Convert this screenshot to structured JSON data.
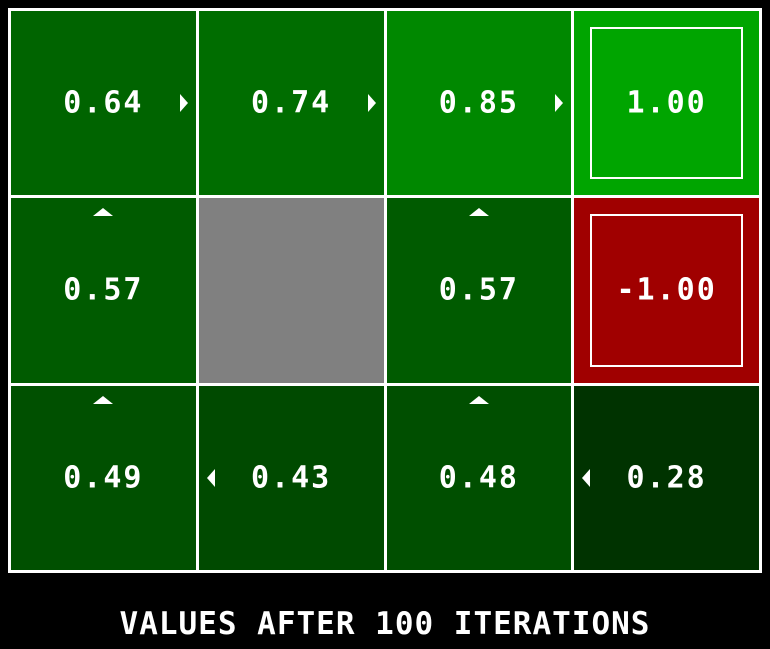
{
  "caption": "VALUES AFTER 100 ITERATIONS",
  "grid": {
    "rows": 3,
    "cols": 4,
    "cells": [
      {
        "row": 0,
        "col": 0,
        "type": "state",
        "value": "0.64",
        "color": "#006400",
        "arrow": "right"
      },
      {
        "row": 0,
        "col": 1,
        "type": "state",
        "value": "0.74",
        "color": "#006d00",
        "arrow": "right"
      },
      {
        "row": 0,
        "col": 2,
        "type": "state",
        "value": "0.85",
        "color": "#008800",
        "arrow": "right"
      },
      {
        "row": 0,
        "col": 3,
        "type": "terminal",
        "value": "1.00",
        "color": "#00a500",
        "arrow": ""
      },
      {
        "row": 1,
        "col": 0,
        "type": "state",
        "value": "0.57",
        "color": "#005b00",
        "arrow": "up"
      },
      {
        "row": 1,
        "col": 1,
        "type": "wall",
        "value": "",
        "color": "#808080",
        "arrow": ""
      },
      {
        "row": 1,
        "col": 2,
        "type": "state",
        "value": "0.57",
        "color": "#005b00",
        "arrow": "up"
      },
      {
        "row": 1,
        "col": 3,
        "type": "terminal",
        "value": "-1.00",
        "color": "#a00000",
        "arrow": ""
      },
      {
        "row": 2,
        "col": 0,
        "type": "state",
        "value": "0.49",
        "color": "#005000",
        "arrow": "up"
      },
      {
        "row": 2,
        "col": 1,
        "type": "state",
        "value": "0.43",
        "color": "#004a00",
        "arrow": "left"
      },
      {
        "row": 2,
        "col": 2,
        "type": "state",
        "value": "0.48",
        "color": "#004f00",
        "arrow": "up"
      },
      {
        "row": 2,
        "col": 3,
        "type": "state",
        "value": "0.28",
        "color": "#003300",
        "arrow": "left"
      }
    ]
  }
}
